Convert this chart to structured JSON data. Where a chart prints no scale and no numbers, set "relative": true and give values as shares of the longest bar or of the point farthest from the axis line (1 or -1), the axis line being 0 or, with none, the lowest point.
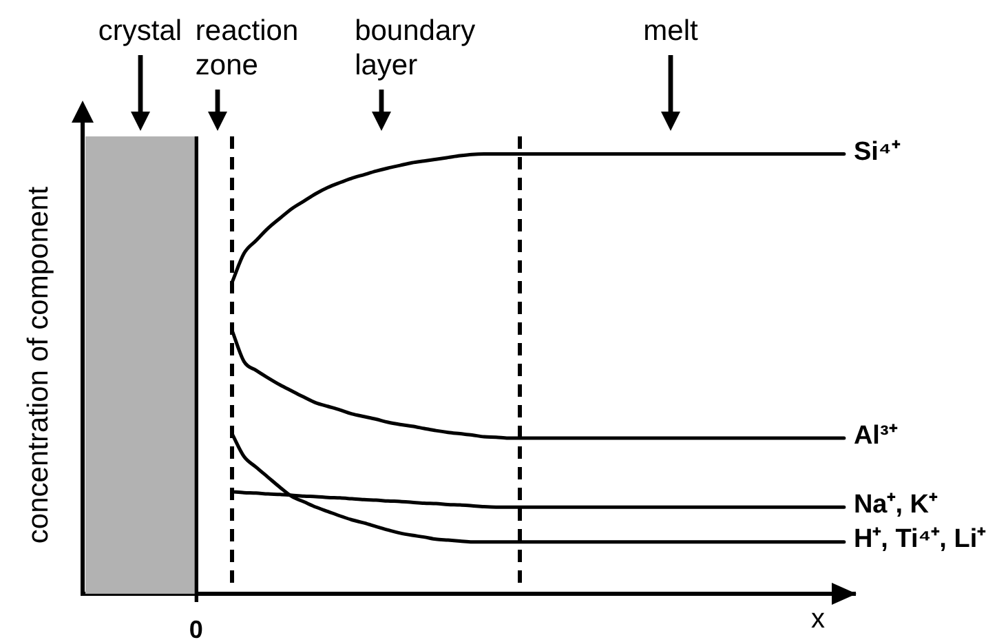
{
  "chart_data": {
    "type": "line",
    "relative": true,
    "xlabel": "x",
    "ylabel": "concentration of component",
    "categories": [
      null,
      null,
      null,
      null,
      null,
      null,
      null,
      null,
      null,
      null,
      null,
      null,
      null,
      null,
      null,
      null,
      null,
      null,
      null,
      null,
      null,
      null,
      null,
      null,
      null,
      null,
      null,
      null,
      null,
      null,
      null,
      null,
      null,
      null,
      null,
      null,
      null,
      null,
      null,
      null,
      null,
      null,
      null,
      null,
      null,
      null,
      null,
      null,
      null,
      null,
      null,
      null,
      null,
      null,
      null
    ],
    "series": [
      {
        "name": "Si⁴⁺",
        "color": "#000000",
        "values": [
          null,
          null,
          null,
          0.708,
          0.774,
          0.803,
          0.831,
          0.854,
          0.876,
          0.893,
          0.91,
          0.924,
          0.935,
          0.945,
          0.953,
          0.961,
          0.968,
          0.974,
          0.98,
          0.984,
          0.988,
          0.992,
          0.996,
          0.999,
          1,
          1,
          1,
          1,
          1,
          1,
          1,
          1,
          1,
          1,
          1,
          1,
          1,
          1,
          1,
          1,
          1,
          1,
          1,
          1,
          1,
          1,
          1,
          1,
          1,
          1,
          1,
          1,
          1,
          1,
          1
        ]
      },
      {
        "name": "Al³⁺",
        "color": "#000000",
        "values": [
          null,
          null,
          null,
          0.599,
          0.528,
          0.508,
          0.491,
          0.475,
          0.461,
          0.447,
          0.434,
          0.426,
          0.418,
          0.409,
          0.403,
          0.397,
          0.39,
          0.385,
          0.381,
          0.376,
          0.371,
          0.367,
          0.364,
          0.361,
          0.357,
          0.356,
          0.354,
          0.354,
          0.354,
          0.354,
          0.354,
          0.354,
          0.354,
          0.354,
          0.354,
          0.354,
          0.354,
          0.354,
          0.354,
          0.354,
          0.354,
          0.354,
          0.354,
          0.354,
          0.354,
          0.354,
          0.354,
          0.354,
          0.354,
          0.354,
          0.354,
          0.354,
          0.354,
          0.354,
          0.354
        ]
      },
      {
        "name": "Na⁺, K⁺",
        "color": "#000000",
        "values": [
          null,
          null,
          null,
          0.232,
          0.23,
          0.229,
          0.227,
          0.226,
          0.224,
          0.222,
          0.221,
          0.219,
          0.218,
          0.216,
          0.214,
          0.213,
          0.211,
          0.21,
          0.208,
          0.206,
          0.205,
          0.203,
          0.202,
          0.2,
          0.198,
          0.197,
          0.197,
          0.197,
          0.197,
          0.197,
          0.197,
          0.197,
          0.197,
          0.197,
          0.197,
          0.197,
          0.197,
          0.197,
          0.197,
          0.197,
          0.197,
          0.197,
          0.197,
          0.197,
          0.197,
          0.197,
          0.197,
          0.197,
          0.197,
          0.197,
          0.197,
          0.197,
          0.197,
          0.197,
          0.197
        ]
      },
      {
        "name": "H⁺, Ti⁴⁺, Li⁺",
        "color": "#000000",
        "values": [
          null,
          null,
          null,
          0.364,
          0.312,
          0.288,
          0.265,
          0.242,
          0.221,
          0.209,
          0.197,
          0.187,
          0.177,
          0.168,
          0.161,
          0.153,
          0.145,
          0.138,
          0.133,
          0.129,
          0.124,
          0.122,
          0.12,
          0.118,
          0.118,
          0.118,
          0.118,
          0.118,
          0.118,
          0.118,
          0.118,
          0.118,
          0.118,
          0.118,
          0.118,
          0.118,
          0.118,
          0.118,
          0.118,
          0.118,
          0.118,
          0.118,
          0.118,
          0.118,
          0.118,
          0.118,
          0.118,
          0.118,
          0.118,
          0.118,
          0.118,
          0.118,
          0.118,
          0.118,
          0.118
        ]
      }
    ],
    "annotations": [
      "crystal",
      "reaction\nzone",
      "boundary\nlayer",
      "melt",
      "0"
    ],
    "legend": false
  }
}
